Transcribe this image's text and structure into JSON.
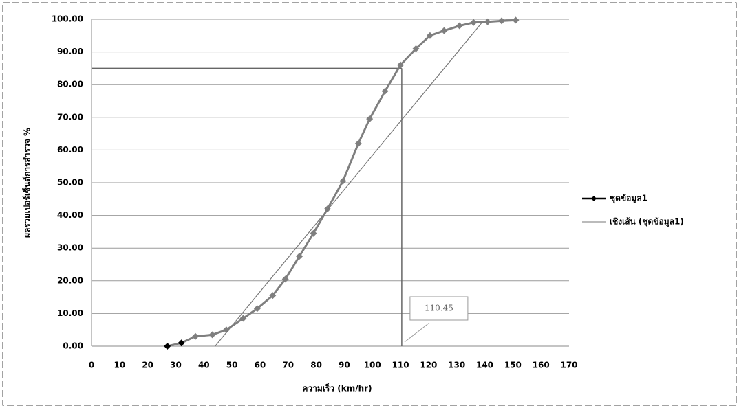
{
  "chart_data": {
    "type": "line",
    "x_label": "ความเร็ว (km/hr)",
    "y_label": "ผลรวมเปอร์เซ็นต์การสำรวจ %",
    "xlim": [
      0,
      170
    ],
    "xticks": [
      0,
      10,
      20,
      30,
      40,
      50,
      60,
      70,
      80,
      90,
      100,
      110,
      120,
      130,
      140,
      150,
      160,
      170
    ],
    "ylim": [
      0,
      100
    ],
    "yticks": [
      {
        "value": 0,
        "label": "0.00"
      },
      {
        "value": 10,
        "label": "10.00"
      },
      {
        "value": 20,
        "label": "20.00"
      },
      {
        "value": 30,
        "label": "30.00"
      },
      {
        "value": 40,
        "label": "40.00"
      },
      {
        "value": 50,
        "label": "50.00"
      },
      {
        "value": 60,
        "label": "60.00"
      },
      {
        "value": 70,
        "label": "70.00"
      },
      {
        "value": 80,
        "label": "80.00"
      },
      {
        "value": 90,
        "label": "90.00"
      },
      {
        "value": 100,
        "label": "100.00"
      }
    ],
    "grid": true,
    "legend": "right",
    "series": [
      {
        "name": "ชุดข้อมูล1",
        "color": "#7f7f7f",
        "x": [
          27,
          32,
          37,
          43,
          48,
          54,
          59,
          64.5,
          69,
          74,
          79,
          84,
          89.5,
          95,
          99,
          104.5,
          110,
          115.5,
          120.5,
          125.5,
          131,
          136,
          141,
          146,
          151
        ],
        "values": [
          0,
          1,
          3,
          3.5,
          5,
          8.5,
          11.5,
          15.5,
          20.5,
          27.5,
          34.5,
          42,
          50.5,
          62,
          69.5,
          78,
          86,
          91,
          95,
          96.5,
          98,
          99,
          99.2,
          99.5,
          99.7
        ]
      },
      {
        "name": "เชิงเส้น (ชุดข้อมูล1)",
        "color": "#777777",
        "trend": true,
        "x": [
          44,
          139
        ],
        "values": [
          0,
          99
        ]
      }
    ],
    "reference_x": 110.45,
    "reference_y": 85
  }
}
